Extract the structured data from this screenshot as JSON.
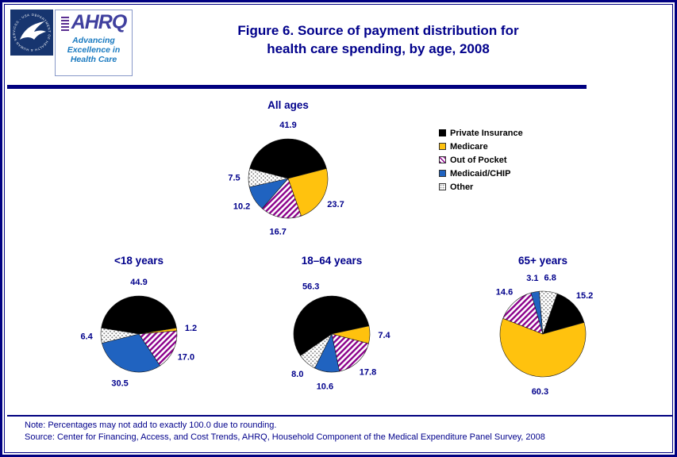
{
  "page": {
    "title_line1": "Figure 6. Source of payment distribution for",
    "title_line2": "health care spending, by age, 2008",
    "note": "Note: Percentages may not add to exactly 100.0 due to rounding.",
    "source": "Source: Center for Financing, Access, and Cost Trends, AHRQ, Household Component of the Medical Expenditure Panel Survey, 2008"
  },
  "logos": {
    "hhs_ring_text": "DEPARTMENT OF HEALTH & HUMAN SERVICES - USA",
    "ahrq_acronym": "AHRQ",
    "ahrq_tagline": [
      "Advancing",
      "Excellence in",
      "Health Care"
    ]
  },
  "legend": {
    "position": "right-of-all-ages-pie",
    "items": [
      {
        "label": "Private Insurance",
        "swatch": "solid-black"
      },
      {
        "label": "Medicare",
        "swatch": "solid-gold"
      },
      {
        "label": "Out of Pocket",
        "swatch": "purple-diagonal-stripes"
      },
      {
        "label": "Medicaid/CHIP",
        "swatch": "solid-blue"
      },
      {
        "label": "Other",
        "swatch": "gray-dots"
      }
    ]
  },
  "colors": {
    "navy": "#00008B",
    "border_navy": "#000080",
    "private_insurance": "#000000",
    "medicare": "#FFC20E",
    "out_of_pocket": "#8B008B",
    "medicaid_chip": "#2063C0",
    "other": "#8A8A8A"
  },
  "chart_data": [
    {
      "type": "pie",
      "title": "All ages",
      "categories": [
        "Private Insurance",
        "Medicare",
        "Out of Pocket",
        "Medicaid/CHIP",
        "Other"
      ],
      "values": [
        41.9,
        23.7,
        16.7,
        10.2,
        7.5
      ],
      "start_angle_deg": -75.4,
      "radius_px": 50,
      "legend_position": "right"
    },
    {
      "type": "pie",
      "title": "<18 years",
      "categories": [
        "Private Insurance",
        "Medicare",
        "Out of Pocket",
        "Medicaid/CHIP",
        "Other"
      ],
      "values": [
        44.9,
        1.2,
        17.0,
        30.5,
        6.4
      ],
      "start_angle_deg": -80.8,
      "radius_px": 48
    },
    {
      "type": "pie",
      "title": "18–64 years",
      "categories": [
        "Private Insurance",
        "Medicare",
        "Out of Pocket",
        "Medicaid/CHIP",
        "Other"
      ],
      "values": [
        56.3,
        7.4,
        17.8,
        10.6,
        8.0
      ],
      "start_angle_deg": -124.7,
      "radius_px": 48
    },
    {
      "type": "pie",
      "title": "65+ years",
      "categories": [
        "Private Insurance",
        "Medicare",
        "Out of Pocket",
        "Medicaid/CHIP",
        "Other"
      ],
      "values": [
        15.2,
        60.3,
        14.6,
        3.1,
        6.8
      ],
      "start_angle_deg": 19.6,
      "radius_px": 54
    }
  ]
}
